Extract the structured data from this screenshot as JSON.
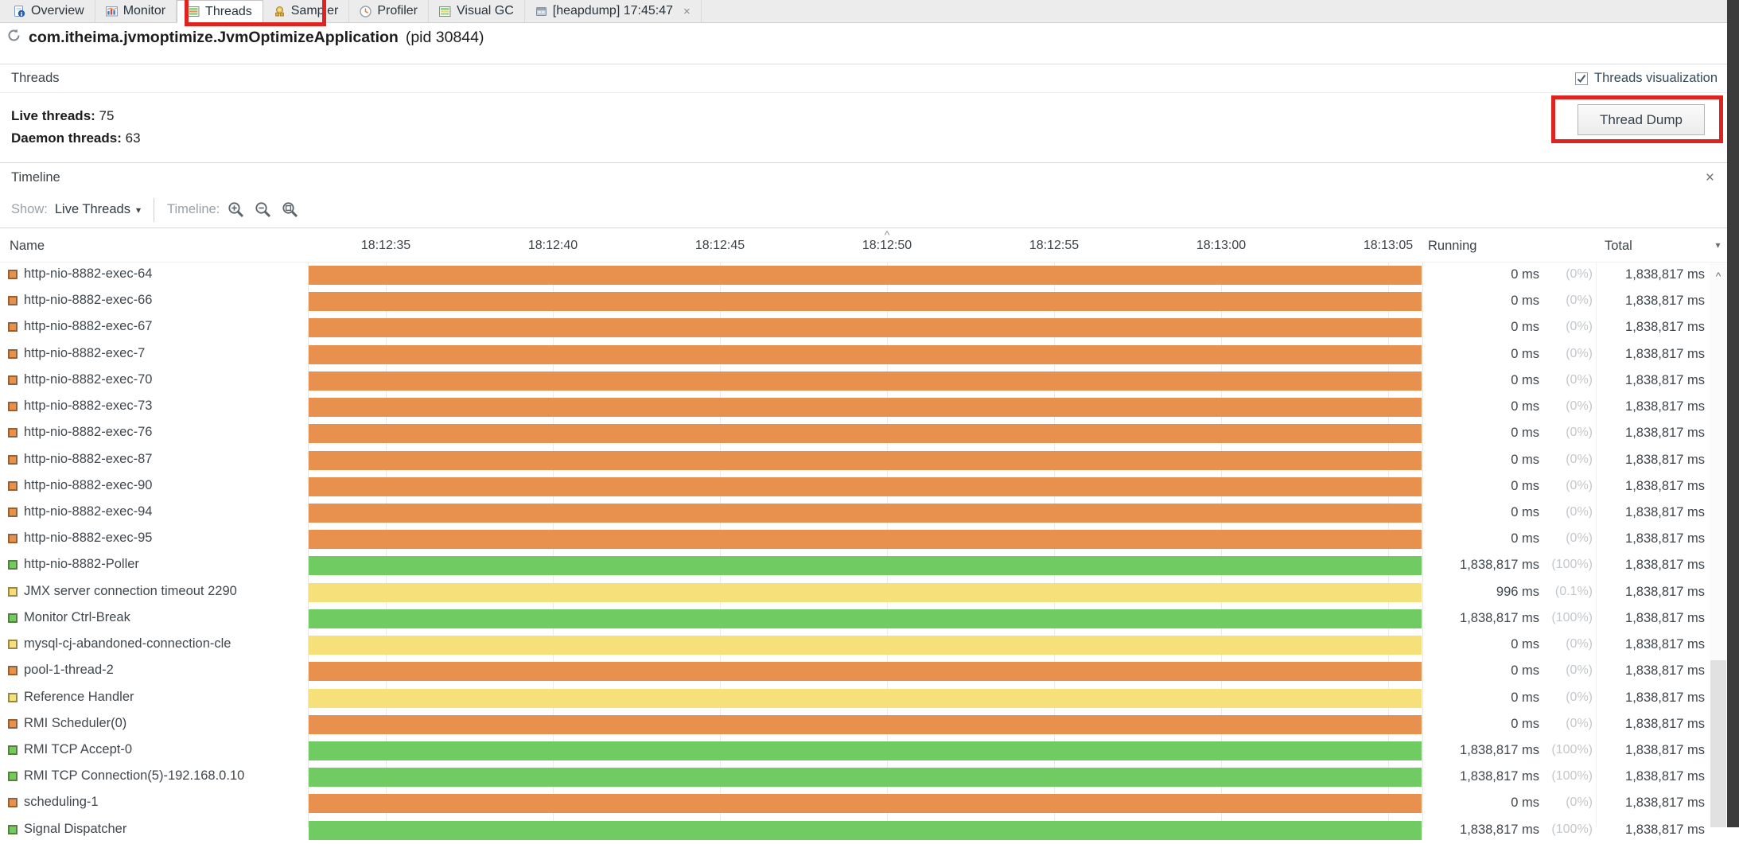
{
  "tabs": {
    "items": [
      {
        "label": "Overview",
        "icon": "overview",
        "selected": false,
        "closable": false
      },
      {
        "label": "Monitor",
        "icon": "monitor",
        "selected": false,
        "closable": false
      },
      {
        "label": "Threads",
        "icon": "threads",
        "selected": true,
        "closable": false
      },
      {
        "label": "Sampler",
        "icon": "sampler",
        "selected": false,
        "closable": false
      },
      {
        "label": "Profiler",
        "icon": "profiler",
        "selected": false,
        "closable": false
      },
      {
        "label": "Visual GC",
        "icon": "visualgc",
        "selected": false,
        "closable": false
      },
      {
        "label": "[heapdump] 17:45:47",
        "icon": "heapdump",
        "selected": false,
        "closable": true
      }
    ]
  },
  "app": {
    "title": "com.itheima.jvmoptimize.JvmOptimizeApplication",
    "pid": "(pid 30844)"
  },
  "threads_section": {
    "title": "Threads",
    "visualization_label": "Threads visualization",
    "visualization_checked": true,
    "live_label": "Live threads:",
    "live_value": "75",
    "daemon_label": "Daemon threads:",
    "daemon_value": "63",
    "thread_dump_label": "Thread Dump"
  },
  "timeline_section": {
    "title": "Timeline",
    "show_label": "Show:",
    "show_value": "Live Threads",
    "zoom_label": "Timeline:"
  },
  "icons": {
    "close": "×",
    "tab_close": "×",
    "dropdown_caret": "▾",
    "column_chooser_caret": "▾",
    "header_caret": "^",
    "scroll_up_caret": "^"
  },
  "table": {
    "name_header": "Name",
    "running_header": "Running",
    "total_header": "Total",
    "ticks": [
      "18:12:35",
      "18:12:40",
      "18:12:45",
      "18:12:50",
      "18:12:55",
      "18:13:00",
      "18:13:05"
    ],
    "caret_tick_index": 3,
    "rows": [
      {
        "name": "http-nio-8882-exec-64",
        "state": "orange",
        "running": "0 ms",
        "pct": "(0%)",
        "total": "1,838,817 ms"
      },
      {
        "name": "http-nio-8882-exec-66",
        "state": "orange",
        "running": "0 ms",
        "pct": "(0%)",
        "total": "1,838,817 ms"
      },
      {
        "name": "http-nio-8882-exec-67",
        "state": "orange",
        "running": "0 ms",
        "pct": "(0%)",
        "total": "1,838,817 ms"
      },
      {
        "name": "http-nio-8882-exec-7",
        "state": "orange",
        "running": "0 ms",
        "pct": "(0%)",
        "total": "1,838,817 ms"
      },
      {
        "name": "http-nio-8882-exec-70",
        "state": "orange",
        "running": "0 ms",
        "pct": "(0%)",
        "total": "1,838,817 ms"
      },
      {
        "name": "http-nio-8882-exec-73",
        "state": "orange",
        "running": "0 ms",
        "pct": "(0%)",
        "total": "1,838,817 ms"
      },
      {
        "name": "http-nio-8882-exec-76",
        "state": "orange",
        "running": "0 ms",
        "pct": "(0%)",
        "total": "1,838,817 ms"
      },
      {
        "name": "http-nio-8882-exec-87",
        "state": "orange",
        "running": "0 ms",
        "pct": "(0%)",
        "total": "1,838,817 ms"
      },
      {
        "name": "http-nio-8882-exec-90",
        "state": "orange",
        "running": "0 ms",
        "pct": "(0%)",
        "total": "1,838,817 ms"
      },
      {
        "name": "http-nio-8882-exec-94",
        "state": "orange",
        "running": "0 ms",
        "pct": "(0%)",
        "total": "1,838,817 ms"
      },
      {
        "name": "http-nio-8882-exec-95",
        "state": "orange",
        "running": "0 ms",
        "pct": "(0%)",
        "total": "1,838,817 ms"
      },
      {
        "name": "http-nio-8882-Poller",
        "state": "green",
        "running": "1,838,817 ms",
        "pct": "(100%)",
        "total": "1,838,817 ms"
      },
      {
        "name": "JMX server connection timeout 2290",
        "state": "yellow",
        "running": "996 ms",
        "pct": "(0.1%)",
        "total": "1,838,817 ms"
      },
      {
        "name": "Monitor Ctrl-Break",
        "state": "green",
        "running": "1,838,817 ms",
        "pct": "(100%)",
        "total": "1,838,817 ms"
      },
      {
        "name": "mysql-cj-abandoned-connection-cle",
        "state": "yellow",
        "running": "0 ms",
        "pct": "(0%)",
        "total": "1,838,817 ms"
      },
      {
        "name": "pool-1-thread-2",
        "state": "orange",
        "running": "0 ms",
        "pct": "(0%)",
        "total": "1,838,817 ms"
      },
      {
        "name": "Reference Handler",
        "state": "yellow",
        "running": "0 ms",
        "pct": "(0%)",
        "total": "1,838,817 ms"
      },
      {
        "name": "RMI Scheduler(0)",
        "state": "orange",
        "running": "0 ms",
        "pct": "(0%)",
        "total": "1,838,817 ms"
      },
      {
        "name": "RMI TCP Accept-0",
        "state": "green",
        "running": "1,838,817 ms",
        "pct": "(100%)",
        "total": "1,838,817 ms"
      },
      {
        "name": "RMI TCP Connection(5)-192.168.0.10",
        "state": "green",
        "running": "1,838,817 ms",
        "pct": "(100%)",
        "total": "1,838,817 ms"
      },
      {
        "name": "scheduling-1",
        "state": "orange",
        "running": "0 ms",
        "pct": "(0%)",
        "total": "1,838,817 ms"
      },
      {
        "name": "Signal Dispatcher",
        "state": "green",
        "running": "1,838,817 ms",
        "pct": "(100%)",
        "total": "1,838,817 ms"
      }
    ]
  },
  "colors": {
    "orange": "#e8914e",
    "green": "#6fcb62",
    "yellow": "#f5e07a",
    "annotation_red": "#dd2420"
  }
}
